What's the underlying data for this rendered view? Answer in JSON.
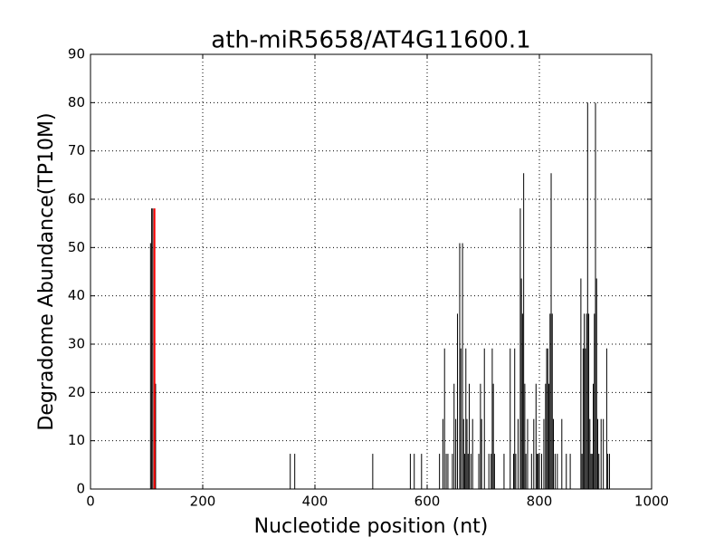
{
  "chart_data": {
    "type": "vlines",
    "title": "ath-miR5658/AT4G11600.1",
    "xlabel": "Nucleotide position (nt)",
    "ylabel": "Degradome Abundance(TP10M)",
    "xlim": [
      0,
      1000
    ],
    "xticks": [
      0,
      200,
      400,
      600,
      800,
      1000
    ],
    "ylim": [
      0,
      90
    ],
    "yticks": [
      0,
      10,
      20,
      30,
      40,
      50,
      60,
      70,
      80,
      90
    ],
    "grid": true,
    "series": [
      {
        "color": "#000000",
        "x": [
          107,
          109,
          111,
          116,
          356,
          364,
          503,
          570,
          577,
          590,
          622,
          628,
          631,
          634,
          637,
          645,
          648,
          651,
          654,
          658,
          660,
          663,
          665,
          667,
          669,
          671,
          673,
          675,
          678,
          681,
          692,
          695,
          697,
          702,
          710,
          714,
          716,
          718,
          720,
          737,
          748,
          754,
          756,
          758,
          762,
          766,
          768,
          770,
          772,
          774,
          776,
          779,
          786,
          790,
          794,
          796,
          798,
          800,
          804,
          808,
          811,
          813,
          815,
          817,
          819,
          821,
          823,
          825,
          828,
          832,
          840,
          848,
          855,
          874,
          876,
          878,
          880,
          882,
          884,
          886,
          888,
          890,
          892,
          894,
          896,
          898,
          900,
          902,
          904,
          906,
          910,
          914,
          920,
          922,
          925
        ],
        "values": [
          50.9,
          58.1,
          58.1,
          21.8,
          7.3,
          7.3,
          7.3,
          7.3,
          7.3,
          7.3,
          7.3,
          14.5,
          29.1,
          7.3,
          7.3,
          7.3,
          21.8,
          14.5,
          36.3,
          50.9,
          29.1,
          50.9,
          14.5,
          7.3,
          29.1,
          14.5,
          7.3,
          21.8,
          7.3,
          14.5,
          7.3,
          21.8,
          14.5,
          29.1,
          7.3,
          7.3,
          29.1,
          21.8,
          7.3,
          7.3,
          29.1,
          7.3,
          29.1,
          7.3,
          14.5,
          58.1,
          43.6,
          36.3,
          65.4,
          21.8,
          7.3,
          14.5,
          7.3,
          14.5,
          21.8,
          7.3,
          7.3,
          7.3,
          7.3,
          14.5,
          21.8,
          29.1,
          29.1,
          21.8,
          36.3,
          65.4,
          36.3,
          14.5,
          7.3,
          7.3,
          14.5,
          7.3,
          7.3,
          43.6,
          7.3,
          29.1,
          36.3,
          29.1,
          36.3,
          80,
          36.3,
          14.5,
          7.3,
          7.3,
          21.8,
          36.3,
          80,
          43.6,
          14.5,
          7.3,
          14.5,
          14.5,
          29.1,
          7.3,
          7.3
        ]
      },
      {
        "color": "#ff0000",
        "x": [
          114
        ],
        "values": [
          58.1
        ]
      }
    ]
  }
}
